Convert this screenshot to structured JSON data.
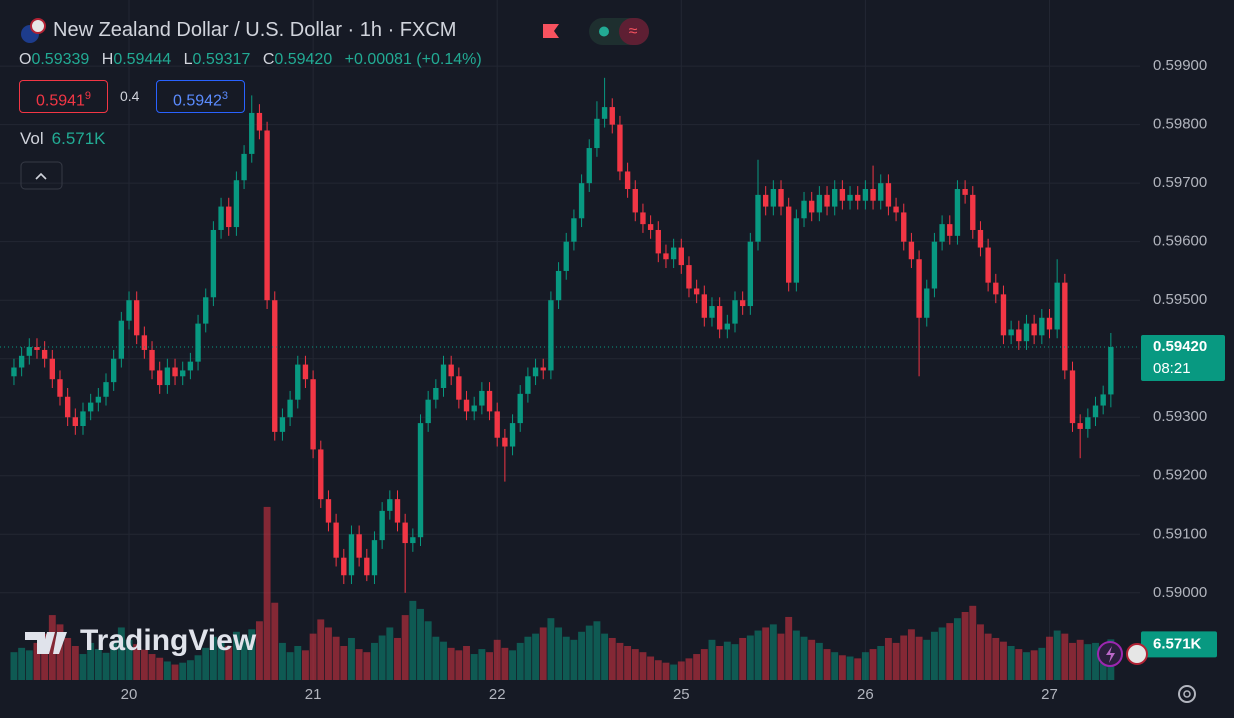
{
  "header": {
    "title": "New Zealand Dollar / U.S. Dollar · 1h · FXCM",
    "ohlc": [
      {
        "label": "O",
        "value": "0.59339"
      },
      {
        "label": "H",
        "value": "0.59444"
      },
      {
        "label": "L",
        "value": "0.59317"
      },
      {
        "label": "C",
        "value": "0.59420"
      }
    ],
    "change": "+0.00081 (+0.14%)",
    "sell": {
      "price": "0.5941",
      "pip": "9"
    },
    "spread": "0.4",
    "buy": {
      "price": "0.5942",
      "pip": "3"
    },
    "volume": {
      "label": "Vol",
      "value": "6.571K"
    },
    "watermark": "TradingView"
  },
  "chart_data": {
    "type": "candlestick",
    "up_color": "#089981",
    "down_color": "#f23645",
    "xlim": [
      -16.82,
      131.8
    ],
    "ylim": [
      0.58851,
      0.60013
    ],
    "volume_lim": [
      0,
      110000
    ],
    "grid": true,
    "xticks": [
      {
        "value": 0,
        "label": "20"
      },
      {
        "value": 24,
        "label": "21"
      },
      {
        "value": 48,
        "label": "22"
      },
      {
        "value": 72,
        "label": "25"
      },
      {
        "value": 96,
        "label": "26"
      },
      {
        "value": 120,
        "label": "27"
      }
    ],
    "yticks": [
      {
        "value": 0.59,
        "label": "0.59000"
      },
      {
        "value": 0.591,
        "label": "0.59100"
      },
      {
        "value": 0.592,
        "label": "0.59200"
      },
      {
        "value": 0.593,
        "label": "0.59300"
      },
      {
        "value": 0.594,
        "label": "0.59400"
      },
      {
        "value": 0.595,
        "label": "0.59500"
      },
      {
        "value": 0.596,
        "label": "0.59600"
      },
      {
        "value": 0.597,
        "label": "0.59700"
      },
      {
        "value": 0.598,
        "label": "0.59800"
      },
      {
        "value": 0.599,
        "label": "0.59900"
      }
    ],
    "last_label": "0.59420",
    "countdown": "08:21",
    "volume_label": "6.571K",
    "x": [
      -15,
      -14,
      -13,
      -12,
      -11,
      -10,
      -9,
      -8,
      -7,
      -6,
      -5,
      -4,
      -3,
      -2,
      -1,
      0,
      1,
      2,
      3,
      4,
      5,
      6,
      7,
      8,
      9,
      10,
      11,
      12,
      13,
      14,
      15,
      16,
      17,
      18,
      19,
      20,
      21,
      22,
      23,
      24,
      25,
      26,
      27,
      28,
      29,
      30,
      31,
      32,
      33,
      34,
      35,
      36,
      37,
      38,
      39,
      40,
      41,
      42,
      43,
      44,
      45,
      46,
      47,
      48,
      49,
      50,
      51,
      52,
      53,
      54,
      55,
      56,
      57,
      58,
      59,
      60,
      61,
      62,
      63,
      64,
      65,
      66,
      67,
      68,
      69,
      70,
      71,
      72,
      73,
      74,
      75,
      76,
      77,
      78,
      79,
      80,
      81,
      82,
      83,
      84,
      85,
      86,
      87,
      88,
      89,
      90,
      91,
      92,
      93,
      94,
      95,
      96,
      97,
      98,
      99,
      100,
      101,
      102,
      103,
      104,
      105,
      106,
      107,
      108,
      109,
      110,
      111,
      112,
      113,
      114,
      115,
      116,
      117,
      118,
      119,
      120,
      121,
      122,
      123,
      124,
      125,
      126,
      127,
      128
    ],
    "open": [
      0.5937,
      0.59385,
      0.59405,
      0.5942,
      0.59415,
      0.594,
      0.59365,
      0.59335,
      0.593,
      0.59285,
      0.5931,
      0.59325,
      0.59335,
      0.5936,
      0.594,
      0.59465,
      0.595,
      0.5944,
      0.59415,
      0.5938,
      0.59355,
      0.59385,
      0.5937,
      0.5938,
      0.59395,
      0.5946,
      0.59505,
      0.5962,
      0.5966,
      0.59625,
      0.59705,
      0.5975,
      0.5982,
      0.5979,
      0.595,
      0.59275,
      0.593,
      0.5933,
      0.5939,
      0.59365,
      0.59245,
      0.5916,
      0.5912,
      0.5906,
      0.5903,
      0.591,
      0.5906,
      0.5903,
      0.5909,
      0.5914,
      0.5916,
      0.5912,
      0.59085,
      0.59095,
      0.5929,
      0.5933,
      0.5935,
      0.5939,
      0.5937,
      0.5933,
      0.5931,
      0.5932,
      0.59345,
      0.5931,
      0.59265,
      0.5925,
      0.5929,
      0.5934,
      0.5937,
      0.59385,
      0.5938,
      0.595,
      0.5955,
      0.596,
      0.5964,
      0.597,
      0.5976,
      0.5981,
      0.5983,
      0.598,
      0.5972,
      0.5969,
      0.5965,
      0.5963,
      0.5962,
      0.5958,
      0.5957,
      0.5959,
      0.5956,
      0.5952,
      0.5951,
      0.5947,
      0.5949,
      0.5945,
      0.5946,
      0.595,
      0.5949,
      0.596,
      0.5968,
      0.5966,
      0.5969,
      0.5966,
      0.5953,
      0.5964,
      0.5967,
      0.5965,
      0.5968,
      0.5966,
      0.5969,
      0.5967,
      0.5968,
      0.5967,
      0.5969,
      0.5967,
      0.597,
      0.5966,
      0.5965,
      0.596,
      0.5957,
      0.5947,
      0.5952,
      0.596,
      0.5963,
      0.5961,
      0.5969,
      0.5968,
      0.5962,
      0.5959,
      0.5953,
      0.5951,
      0.5944,
      0.5945,
      0.5943,
      0.5946,
      0.5944,
      0.5947,
      0.5945,
      0.5953,
      0.5938,
      0.5929,
      0.5928,
      0.593,
      0.5932,
      0.59339
    ],
    "high": [
      0.594,
      0.5942,
      0.59435,
      0.59435,
      0.5943,
      0.59415,
      0.5938,
      0.5935,
      0.59315,
      0.59325,
      0.5934,
      0.5935,
      0.59375,
      0.59415,
      0.5948,
      0.59515,
      0.59515,
      0.59455,
      0.5943,
      0.59395,
      0.594,
      0.594,
      0.59395,
      0.5941,
      0.59475,
      0.5952,
      0.59635,
      0.59675,
      0.59675,
      0.5972,
      0.59765,
      0.5985,
      0.59835,
      0.59805,
      0.59515,
      0.59315,
      0.59345,
      0.59405,
      0.59405,
      0.5938,
      0.5926,
      0.59175,
      0.59135,
      0.59075,
      0.59115,
      0.59115,
      0.59075,
      0.59105,
      0.59155,
      0.59175,
      0.59175,
      0.59135,
      0.5911,
      0.59305,
      0.59345,
      0.59365,
      0.59405,
      0.59405,
      0.59385,
      0.59345,
      0.59335,
      0.5936,
      0.5936,
      0.59325,
      0.5928,
      0.59305,
      0.59355,
      0.59385,
      0.594,
      0.594,
      0.59515,
      0.59565,
      0.59615,
      0.59655,
      0.59715,
      0.59775,
      0.5984,
      0.5988,
      0.59845,
      0.59815,
      0.59735,
      0.59705,
      0.59665,
      0.59645,
      0.59635,
      0.59595,
      0.59605,
      0.59605,
      0.59575,
      0.59535,
      0.59525,
      0.59505,
      0.59505,
      0.59475,
      0.59515,
      0.59515,
      0.59615,
      0.5974,
      0.59695,
      0.59705,
      0.59705,
      0.59675,
      0.59655,
      0.59685,
      0.59685,
      0.59695,
      0.59695,
      0.59705,
      0.59705,
      0.59695,
      0.59695,
      0.59705,
      0.5973,
      0.59715,
      0.59715,
      0.59675,
      0.59665,
      0.59615,
      0.59585,
      0.59535,
      0.59615,
      0.59645,
      0.59645,
      0.59705,
      0.59705,
      0.59695,
      0.59635,
      0.59605,
      0.59545,
      0.59525,
      0.59465,
      0.59465,
      0.59475,
      0.59475,
      0.59485,
      0.59485,
      0.5957,
      0.59545,
      0.59395,
      0.59305,
      0.59315,
      0.59335,
      0.59354,
      0.59444
    ],
    "low": [
      0.59355,
      0.5937,
      0.5939,
      0.594,
      0.59385,
      0.5935,
      0.5932,
      0.59285,
      0.5927,
      0.5927,
      0.59295,
      0.5931,
      0.5932,
      0.59345,
      0.59385,
      0.5945,
      0.59425,
      0.594,
      0.59365,
      0.5934,
      0.5934,
      0.59355,
      0.59355,
      0.59365,
      0.5938,
      0.59445,
      0.5949,
      0.59605,
      0.5961,
      0.5961,
      0.5969,
      0.59735,
      0.59775,
      0.59485,
      0.5926,
      0.5926,
      0.59285,
      0.59315,
      0.5935,
      0.5923,
      0.59145,
      0.59105,
      0.59045,
      0.59015,
      0.59015,
      0.59045,
      0.5902,
      0.59015,
      0.59075,
      0.59125,
      0.59105,
      0.59,
      0.5907,
      0.5908,
      0.59275,
      0.59315,
      0.59335,
      0.59355,
      0.59315,
      0.59295,
      0.59295,
      0.59305,
      0.59295,
      0.5925,
      0.5919,
      0.59235,
      0.59275,
      0.59325,
      0.59355,
      0.59365,
      0.59365,
      0.59485,
      0.59535,
      0.59585,
      0.59625,
      0.59685,
      0.59745,
      0.59795,
      0.59785,
      0.59705,
      0.59675,
      0.59635,
      0.59615,
      0.59605,
      0.59565,
      0.59555,
      0.59555,
      0.59545,
      0.59505,
      0.59495,
      0.59455,
      0.59455,
      0.59435,
      0.59435,
      0.59445,
      0.59475,
      0.59475,
      0.59585,
      0.59645,
      0.59645,
      0.59645,
      0.59515,
      0.59515,
      0.59625,
      0.59635,
      0.59635,
      0.59645,
      0.59645,
      0.59655,
      0.59655,
      0.59655,
      0.59655,
      0.59655,
      0.59655,
      0.59645,
      0.59635,
      0.59585,
      0.59555,
      0.5937,
      0.59455,
      0.59505,
      0.59585,
      0.59595,
      0.59595,
      0.59665,
      0.59605,
      0.59575,
      0.59515,
      0.59495,
      0.59425,
      0.59425,
      0.59415,
      0.59415,
      0.59425,
      0.59425,
      0.59435,
      0.59435,
      0.59365,
      0.59275,
      0.5923,
      0.59265,
      0.59285,
      0.59305,
      0.59317
    ],
    "close": [
      0.59385,
      0.59405,
      0.5942,
      0.59415,
      0.594,
      0.59365,
      0.59335,
      0.593,
      0.59285,
      0.5931,
      0.59325,
      0.59335,
      0.5936,
      0.594,
      0.59465,
      0.595,
      0.5944,
      0.59415,
      0.5938,
      0.59355,
      0.59385,
      0.5937,
      0.5938,
      0.59395,
      0.5946,
      0.59505,
      0.5962,
      0.5966,
      0.59625,
      0.59705,
      0.5975,
      0.5982,
      0.5979,
      0.595,
      0.59275,
      0.593,
      0.5933,
      0.5939,
      0.59365,
      0.59245,
      0.5916,
      0.5912,
      0.5906,
      0.5903,
      0.591,
      0.5906,
      0.5903,
      0.5909,
      0.5914,
      0.5916,
      0.5912,
      0.59085,
      0.59095,
      0.5929,
      0.5933,
      0.5935,
      0.5939,
      0.5937,
      0.5933,
      0.5931,
      0.5932,
      0.59345,
      0.5931,
      0.59265,
      0.5925,
      0.5929,
      0.5934,
      0.5937,
      0.59385,
      0.5938,
      0.595,
      0.5955,
      0.596,
      0.5964,
      0.597,
      0.5976,
      0.5981,
      0.5983,
      0.598,
      0.5972,
      0.5969,
      0.5965,
      0.5963,
      0.5962,
      0.5958,
      0.5957,
      0.5959,
      0.5956,
      0.5952,
      0.5951,
      0.5947,
      0.5949,
      0.5945,
      0.5946,
      0.595,
      0.5949,
      0.596,
      0.5968,
      0.5966,
      0.5969,
      0.5966,
      0.5953,
      0.5964,
      0.5967,
      0.5965,
      0.5968,
      0.5966,
      0.5969,
      0.5967,
      0.5968,
      0.5967,
      0.5969,
      0.5967,
      0.597,
      0.5966,
      0.5965,
      0.596,
      0.5957,
      0.5947,
      0.5952,
      0.596,
      0.5963,
      0.5961,
      0.5969,
      0.5968,
      0.5962,
      0.5959,
      0.5953,
      0.5951,
      0.5944,
      0.5945,
      0.5943,
      0.5946,
      0.5944,
      0.5947,
      0.5945,
      0.5953,
      0.5938,
      0.5929,
      0.5928,
      0.593,
      0.5932,
      0.59339,
      0.5942
    ],
    "volume": [
      4500,
      5200,
      4800,
      6000,
      7500,
      10500,
      9000,
      6800,
      5500,
      4200,
      6000,
      5000,
      4400,
      6200,
      8500,
      6500,
      5800,
      4900,
      4200,
      3600,
      3000,
      2500,
      2800,
      3200,
      4000,
      5200,
      7000,
      6200,
      5500,
      7800,
      6500,
      8200,
      9500,
      28000,
      12500,
      6000,
      4500,
      5500,
      4800,
      7500,
      9800,
      8500,
      7000,
      5500,
      6800,
      5000,
      4500,
      6000,
      7200,
      8500,
      6800,
      10500,
      12800,
      11500,
      9500,
      7000,
      6200,
      5200,
      4800,
      5500,
      4200,
      5000,
      4500,
      6500,
      5200,
      4800,
      6000,
      7000,
      7500,
      8500,
      10000,
      8500,
      7000,
      6500,
      7800,
      8800,
      9500,
      7500,
      6800,
      6000,
      5500,
      5000,
      4500,
      3800,
      3200,
      2800,
      2500,
      3000,
      3500,
      4200,
      5000,
      6500,
      5500,
      6200,
      5800,
      6800,
      7200,
      8000,
      8500,
      9000,
      7500,
      10200,
      8000,
      7000,
      6500,
      6000,
      5000,
      4500,
      4000,
      3800,
      3500,
      4500,
      5000,
      5500,
      6800,
      6000,
      7200,
      8200,
      7000,
      6500,
      7800,
      8500,
      9200,
      10000,
      11000,
      12000,
      9000,
      7500,
      6800,
      6200,
      5500,
      5000,
      4500,
      4800,
      5200,
      7000,
      8000,
      7500,
      6000,
      6500,
      5800,
      6000,
      5500,
      6571
    ]
  }
}
